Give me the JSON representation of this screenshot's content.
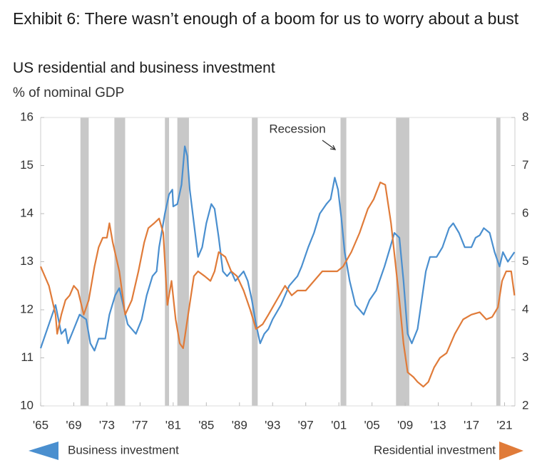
{
  "chart_data": {
    "type": "line",
    "title": "Exhibit 6: There wasn’t enough of a boom for us to worry about a bust",
    "subtitle": "US residential and business investment",
    "y_label": "% of nominal GDP",
    "annotation": "Recession",
    "xlim": [
      1965,
      2022.25
    ],
    "xticks": [
      {
        "value": 1965,
        "label": "'65"
      },
      {
        "value": 1969,
        "label": "'69"
      },
      {
        "value": 1973,
        "label": "'73"
      },
      {
        "value": 1977,
        "label": "'77"
      },
      {
        "value": 1981,
        "label": "'81"
      },
      {
        "value": 1985,
        "label": "'85"
      },
      {
        "value": 1989,
        "label": "'89"
      },
      {
        "value": 1993,
        "label": "'93"
      },
      {
        "value": 1997,
        "label": "'97"
      },
      {
        "value": 2001,
        "label": "'01"
      },
      {
        "value": 2005,
        "label": "'05"
      },
      {
        "value": 2009,
        "label": "'09"
      },
      {
        "value": 2013,
        "label": "'13"
      },
      {
        "value": 2017,
        "label": "'17"
      },
      {
        "value": 2021,
        "label": "'21"
      }
    ],
    "ylim": [
      10,
      16
    ],
    "yticks": [
      10,
      11,
      12,
      13,
      14,
      15,
      16
    ],
    "y2lim": [
      2,
      8
    ],
    "y2ticks": [
      2,
      3,
      4,
      5,
      6,
      7,
      8
    ],
    "recession_color": "#c8c8c8",
    "recessions": [
      [
        1969.8,
        1970.8
      ],
      [
        1973.9,
        1975.2
      ],
      [
        1980.0,
        1980.5
      ],
      [
        1981.5,
        1982.9
      ],
      [
        1990.5,
        1991.2
      ],
      [
        2001.2,
        2001.9
      ],
      [
        2007.9,
        2009.5
      ],
      [
        2020.0,
        2020.5
      ]
    ],
    "series": [
      {
        "name": "Business investment",
        "color": "#4a8fcf",
        "axis": "y",
        "x": [
          1965,
          1966,
          1966.8,
          1967.5,
          1968,
          1968.3,
          1969,
          1969.7,
          1970.5,
          1971,
          1971.5,
          1972,
          1972.8,
          1973.3,
          1974,
          1974.5,
          1975.5,
          1976.5,
          1977.2,
          1977.8,
          1978.5,
          1979,
          1979.3,
          1980,
          1980.5,
          1980.9,
          1981,
          1981.5,
          1982,
          1982.4,
          1982.7,
          1983,
          1983.5,
          1984,
          1984.5,
          1985,
          1985.6,
          1986,
          1986.5,
          1987,
          1987.5,
          1988,
          1988.5,
          1989,
          1989.5,
          1990,
          1990.5,
          1991,
          1991.5,
          1992,
          1992.5,
          1993,
          1994,
          1995,
          1996,
          1996.5,
          1997.3,
          1998,
          1998.7,
          1999.5,
          2000,
          2000.5,
          2000.9,
          2001.3,
          2001.7,
          2002.3,
          2003,
          2003.5,
          2004,
          2004.7,
          2005.5,
          2006.5,
          2007.2,
          2007.7,
          2008.3,
          2008.8,
          2009.3,
          2009.8,
          2010.5,
          2011,
          2011.5,
          2012,
          2012.8,
          2013.5,
          2014.3,
          2014.8,
          2015.5,
          2016.2,
          2017,
          2017.5,
          2018,
          2018.5,
          2019.2,
          2019.8,
          2020.4,
          2020.8,
          2021.4,
          2021.8,
          2022.2
        ],
        "values": [
          11.2,
          11.7,
          12.1,
          11.5,
          11.6,
          11.3,
          11.6,
          11.9,
          11.8,
          11.3,
          11.15,
          11.4,
          11.4,
          11.9,
          12.3,
          12.45,
          11.7,
          11.5,
          11.8,
          12.3,
          12.7,
          12.8,
          13.3,
          14.0,
          14.4,
          14.5,
          14.15,
          14.2,
          14.6,
          15.4,
          15.2,
          14.5,
          13.8,
          13.1,
          13.3,
          13.8,
          14.2,
          14.1,
          13.5,
          12.8,
          12.7,
          12.8,
          12.6,
          12.7,
          12.8,
          12.6,
          12.2,
          11.7,
          11.3,
          11.5,
          11.6,
          11.8,
          12.1,
          12.5,
          12.7,
          12.9,
          13.3,
          13.6,
          14.0,
          14.2,
          14.3,
          14.75,
          14.5,
          13.9,
          13.2,
          12.6,
          12.1,
          12.0,
          11.9,
          12.2,
          12.4,
          12.9,
          13.3,
          13.6,
          13.5,
          12.6,
          11.5,
          11.3,
          11.6,
          12.2,
          12.8,
          13.1,
          13.1,
          13.3,
          13.7,
          13.8,
          13.6,
          13.3,
          13.3,
          13.5,
          13.55,
          13.7,
          13.6,
          13.2,
          12.9,
          13.2,
          13.0,
          13.1,
          13.2
        ]
      },
      {
        "name": "Residential investment",
        "color": "#e07b39",
        "axis": "y2",
        "x": [
          1965,
          1966,
          1966.8,
          1967,
          1967.5,
          1968,
          1968.5,
          1969,
          1969.5,
          1970.2,
          1970.8,
          1971.5,
          1972,
          1972.5,
          1973,
          1973.3,
          1973.7,
          1974.5,
          1975.2,
          1976,
          1976.8,
          1977.5,
          1978,
          1978.7,
          1979.3,
          1979.8,
          1980.3,
          1980.8,
          1981.3,
          1981.8,
          1982.2,
          1982.8,
          1983.5,
          1984,
          1984.8,
          1985.5,
          1986,
          1986.5,
          1987.3,
          1988,
          1988.7,
          1989.5,
          1990.3,
          1991,
          1991.8,
          1992.5,
          1993.5,
          1994.5,
          1995.3,
          1996,
          1997,
          1998,
          1999,
          2000,
          2000.8,
          2001.5,
          2002.5,
          2003.5,
          2004.5,
          2005.2,
          2006,
          2006.6,
          2007.3,
          2007.8,
          2008.3,
          2008.8,
          2009.3,
          2010,
          2010.5,
          2011.2,
          2011.8,
          2012.5,
          2013.2,
          2014,
          2015,
          2016,
          2017,
          2018,
          2018.8,
          2019.5,
          2020.2,
          2020.7,
          2021.2,
          2021.8,
          2022.2
        ],
        "values": [
          4.9,
          4.5,
          3.9,
          3.5,
          3.9,
          4.2,
          4.3,
          4.5,
          4.4,
          3.9,
          4.2,
          4.9,
          5.3,
          5.5,
          5.5,
          5.8,
          5.4,
          4.8,
          3.9,
          4.2,
          4.8,
          5.4,
          5.7,
          5.8,
          5.9,
          5.6,
          4.1,
          4.6,
          3.8,
          3.3,
          3.2,
          3.9,
          4.7,
          4.8,
          4.7,
          4.6,
          4.8,
          5.2,
          5.1,
          4.8,
          4.7,
          4.4,
          4.0,
          3.6,
          3.7,
          3.9,
          4.2,
          4.5,
          4.3,
          4.4,
          4.4,
          4.6,
          4.8,
          4.8,
          4.8,
          4.9,
          5.2,
          5.6,
          6.1,
          6.3,
          6.65,
          6.6,
          5.8,
          5.0,
          4.2,
          3.3,
          2.7,
          2.6,
          2.5,
          2.4,
          2.5,
          2.8,
          3.0,
          3.1,
          3.5,
          3.8,
          3.9,
          3.95,
          3.8,
          3.85,
          4.05,
          4.6,
          4.8,
          4.8,
          4.3
        ]
      }
    ]
  }
}
